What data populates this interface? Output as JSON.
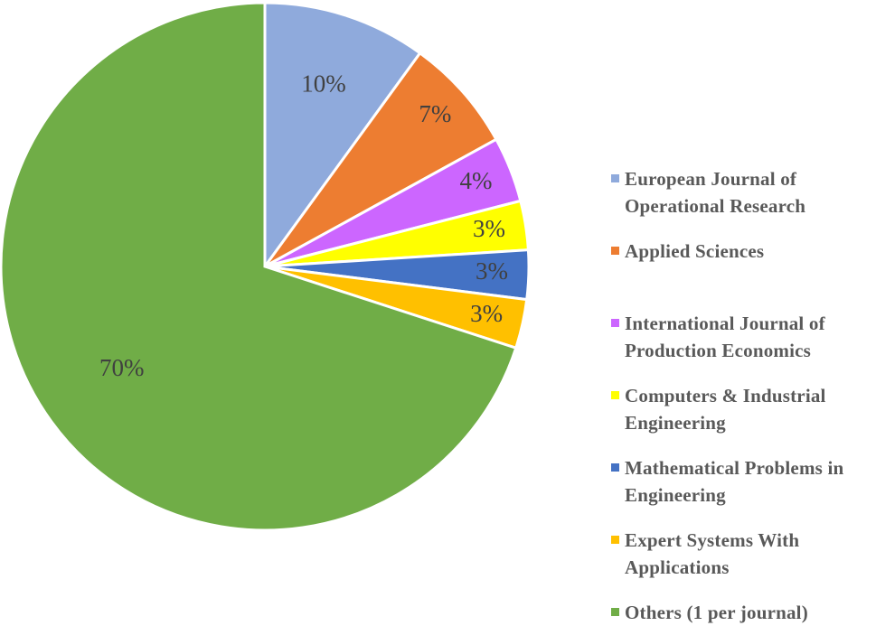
{
  "chart_data": {
    "type": "pie",
    "categories": [
      "European Journal of Operational Research",
      "Applied Sciences",
      "International Journal of Production Economics",
      "Computers & Industrial Engineering",
      "Mathematical Problems in Engineering",
      "Expert Systems With Applications",
      "Others (1 per journal)"
    ],
    "values": [
      10,
      7,
      4,
      3,
      3,
      3,
      70
    ],
    "value_labels": [
      "10%",
      "7%",
      "4%",
      "3%",
      "3%",
      "3%",
      "70%"
    ],
    "colors": [
      "#8faadc",
      "#ed7d31",
      "#cc66ff",
      "#ffff00",
      "#4472c4",
      "#ffc000",
      "#70ad47"
    ]
  }
}
